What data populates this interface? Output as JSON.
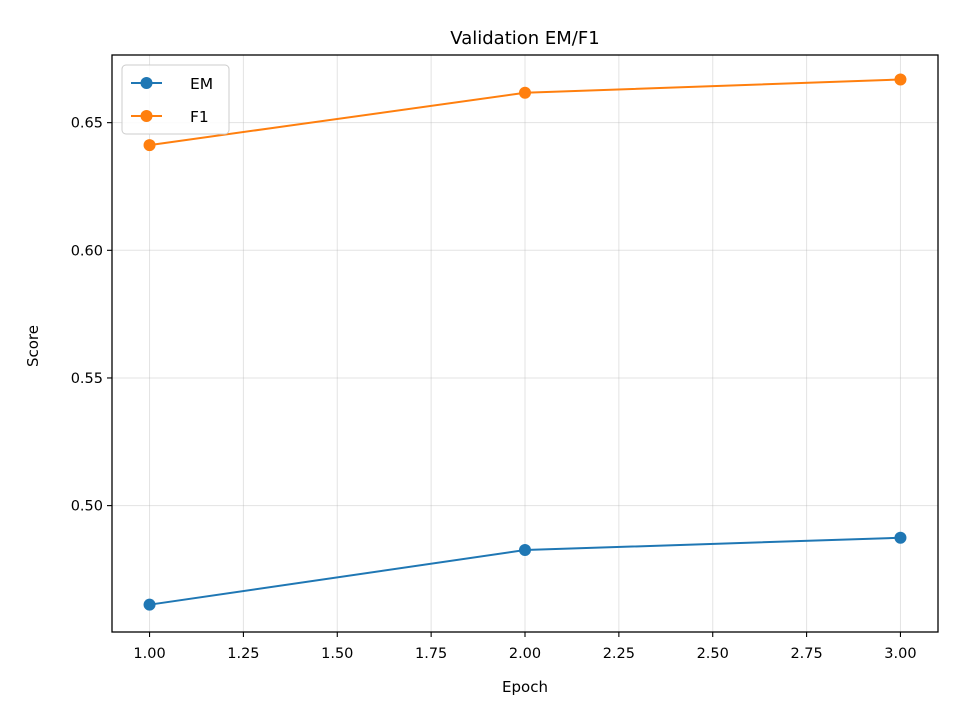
{
  "chart_data": {
    "type": "line",
    "title": "Validation EM/F1",
    "xlabel": "Epoch",
    "ylabel": "Score",
    "x": [
      1.0,
      2.0,
      3.0
    ],
    "series": [
      {
        "name": "EM",
        "values": [
          0.4612,
          0.4826,
          0.4874
        ],
        "color": "#1f77b4"
      },
      {
        "name": "F1",
        "values": [
          0.6412,
          0.6617,
          0.6669
        ],
        "color": "#ff7f0e"
      }
    ],
    "xlim": [
      0.9,
      3.1
    ],
    "ylim": [
      0.4505,
      0.6765
    ],
    "xticks": [
      1.0,
      1.25,
      1.5,
      1.75,
      2.0,
      2.25,
      2.5,
      2.75,
      3.0
    ],
    "xtick_labels": [
      "1.00",
      "1.25",
      "1.50",
      "1.75",
      "2.00",
      "2.25",
      "2.50",
      "2.75",
      "3.00"
    ],
    "yticks": [
      0.5,
      0.55,
      0.6,
      0.65
    ],
    "ytick_labels": [
      "0.50",
      "0.55",
      "0.60",
      "0.65"
    ],
    "grid": true,
    "legend_position": "top-left"
  }
}
